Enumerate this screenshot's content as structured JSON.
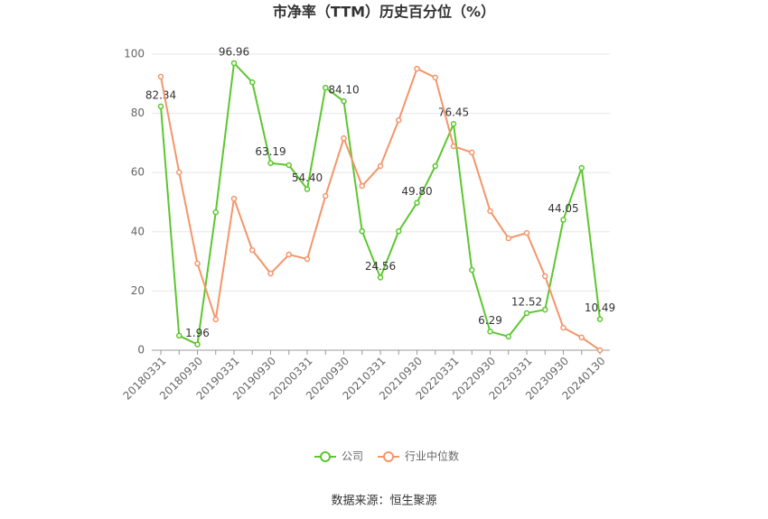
{
  "chart_data": {
    "type": "line",
    "title": "市净率（TTM）历史百分位（%）",
    "source": "数据来源：恒生聚源",
    "categories": [
      "20180331",
      null,
      "20180930",
      null,
      "20190331",
      null,
      "20190930",
      null,
      "20200331",
      null,
      "20200930",
      null,
      "20210331",
      null,
      "20210930",
      null,
      "20220331",
      null,
      "20220930",
      null,
      "20230331",
      null,
      "20230930",
      null,
      "20240130"
    ],
    "ylim": [
      0,
      100
    ],
    "yticks": [
      0,
      20,
      40,
      60,
      80,
      100
    ],
    "grid": true,
    "series": [
      {
        "name": "公司",
        "color": "#5cc72f",
        "values": [
          82.34,
          4.9,
          1.96,
          46.6,
          96.96,
          90.5,
          63.19,
          62.5,
          54.4,
          88.7,
          84.1,
          40.2,
          24.56,
          40.2,
          49.8,
          62.2,
          76.45,
          27.1,
          6.29,
          4.6,
          12.52,
          13.7,
          44.05,
          61.6,
          10.49
        ],
        "value_labels": [
          "82.34",
          null,
          "1.96",
          null,
          "96.96",
          null,
          "63.19",
          null,
          "54.40",
          null,
          "84.10",
          null,
          "24.56",
          null,
          "49.80",
          null,
          "76.45",
          null,
          "6.29",
          null,
          "12.52",
          null,
          "44.05",
          null,
          "10.49"
        ]
      },
      {
        "name": "行业中位数",
        "color": "#f4956a",
        "values": [
          92.4,
          60.1,
          29.3,
          10.4,
          51.2,
          33.8,
          25.9,
          32.3,
          30.8,
          52.1,
          71.6,
          55.5,
          62.2,
          77.7,
          95.1,
          92.1,
          68.9,
          66.8,
          47.0,
          37.8,
          39.6,
          25.0,
          7.6,
          4.3,
          0
        ]
      }
    ]
  }
}
